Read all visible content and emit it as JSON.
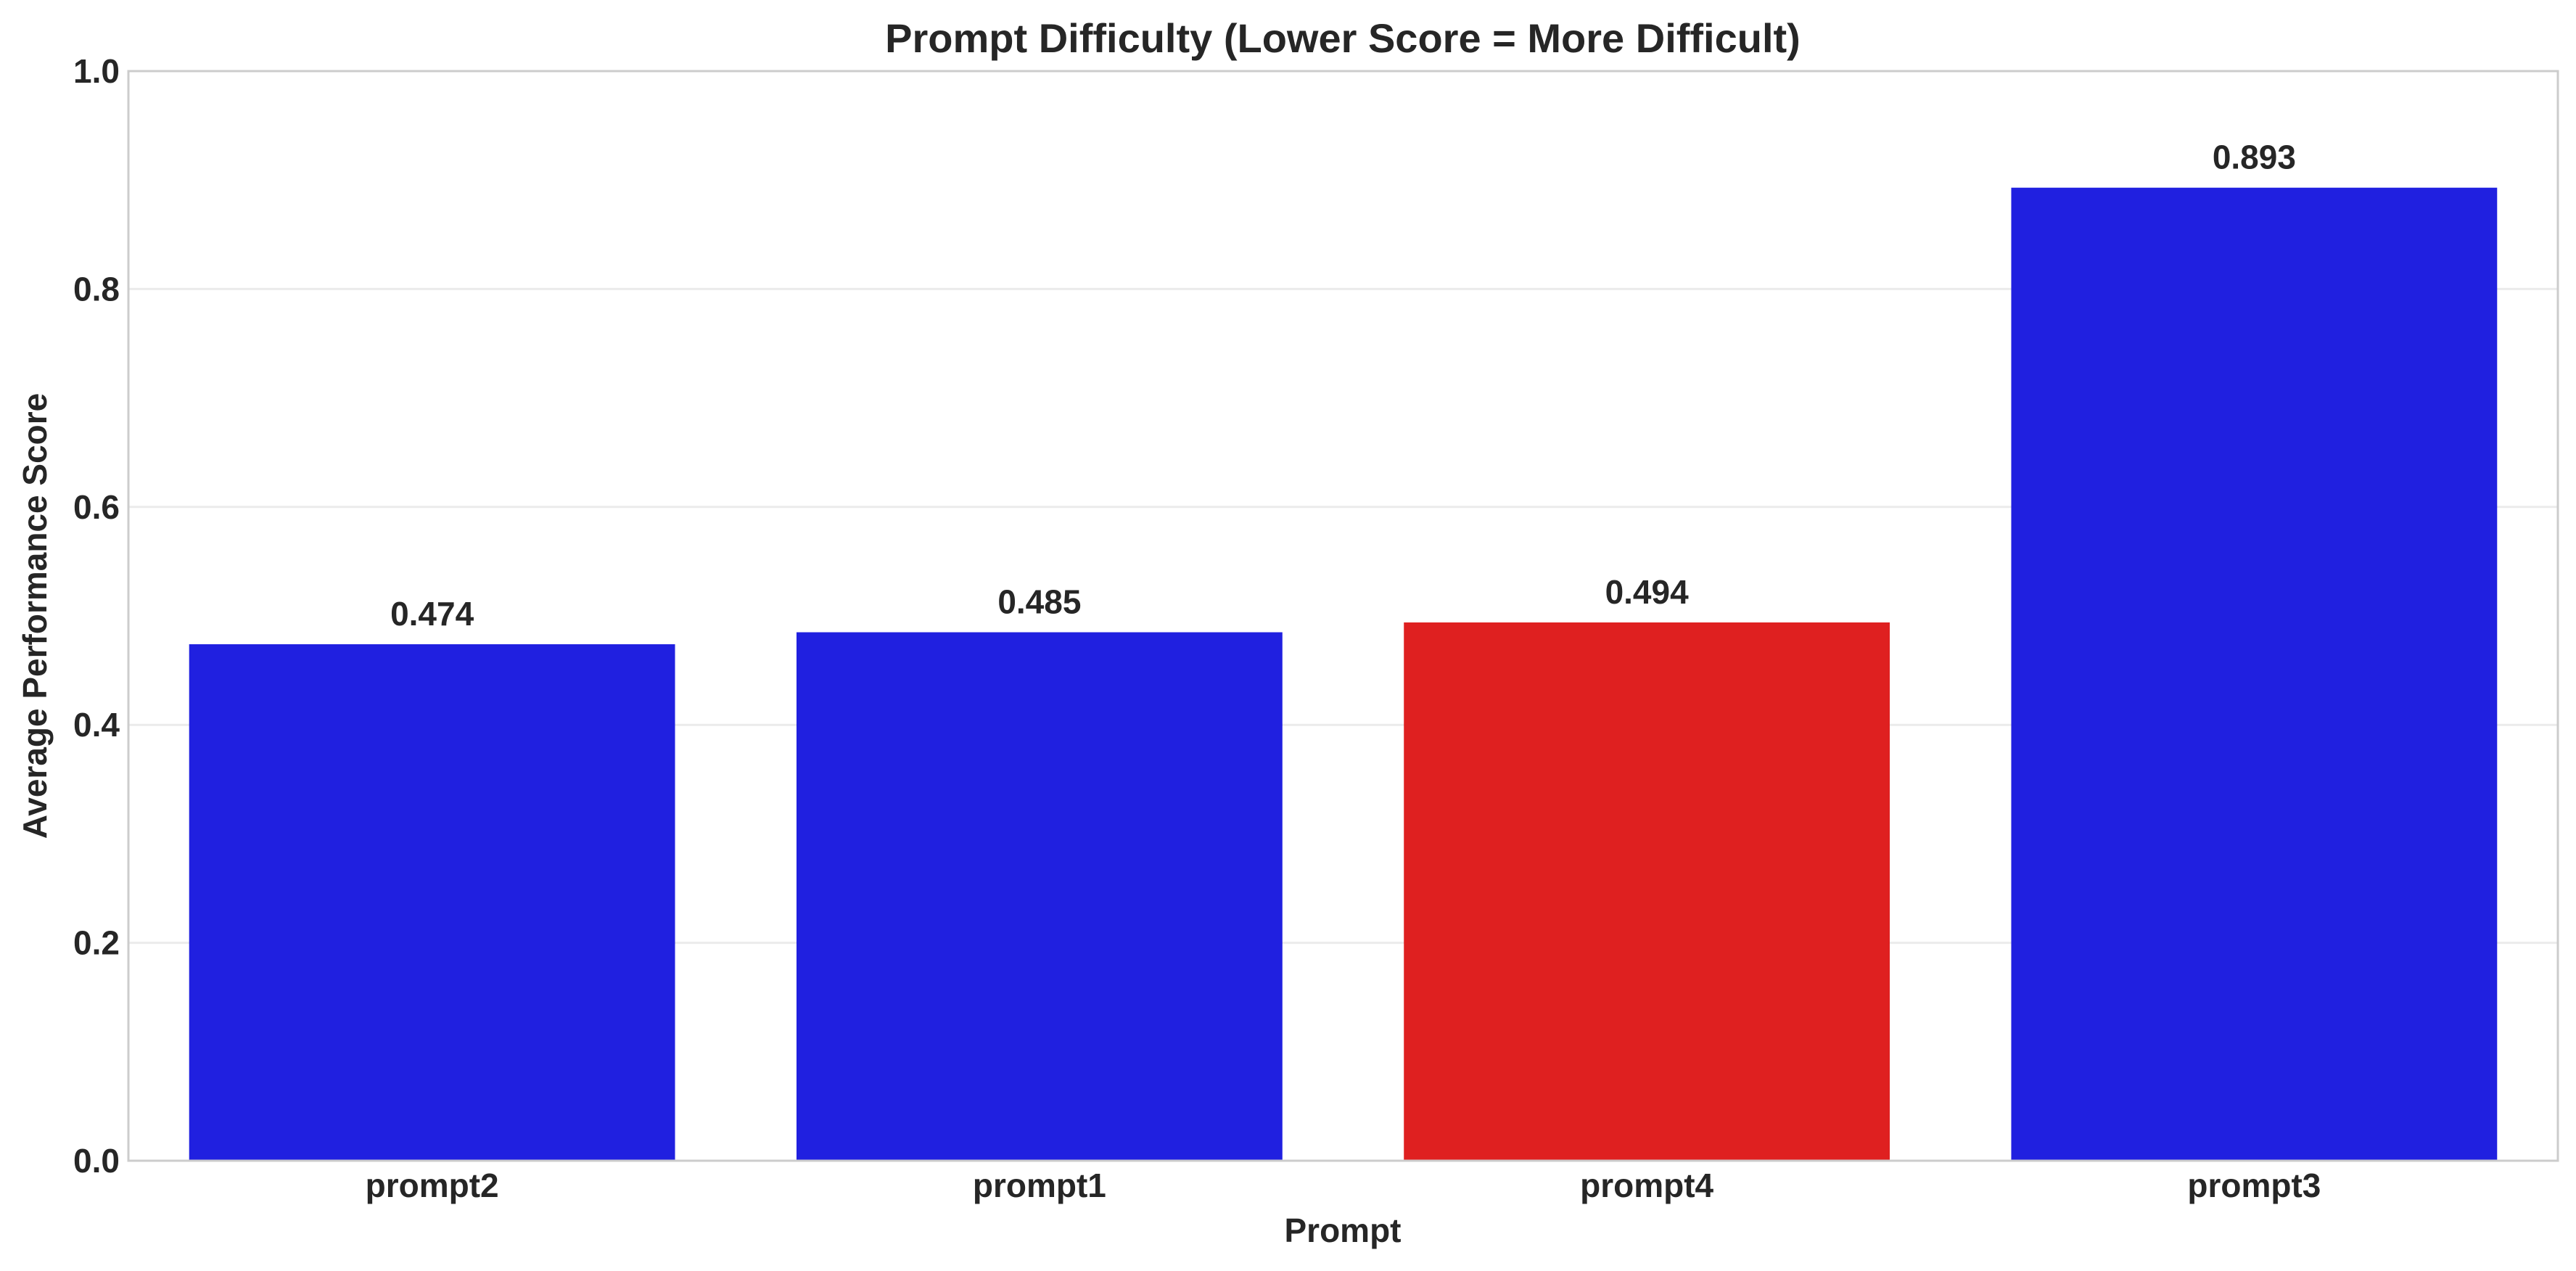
{
  "chart_data": {
    "type": "bar",
    "title": "Prompt Difficulty (Lower Score = More Difficult)",
    "xlabel": "Prompt",
    "ylabel": "Average Performance Score",
    "categories": [
      "prompt2",
      "prompt1",
      "prompt4",
      "prompt3"
    ],
    "values": [
      0.474,
      0.485,
      0.494,
      0.893
    ],
    "data_labels": [
      "0.474",
      "0.485",
      "0.494",
      "0.893"
    ],
    "bar_colors": [
      "#2020e0",
      "#2020e0",
      "#df2020",
      "#2020e0"
    ],
    "ylim": [
      0,
      1.0
    ],
    "yticks": [
      0.0,
      0.2,
      0.4,
      0.6,
      0.8,
      1.0
    ],
    "ytick_labels": [
      "0.0",
      "0.2",
      "0.4",
      "0.6",
      "0.8",
      "1.0"
    ],
    "grid": "horizontal",
    "legend": "none"
  }
}
